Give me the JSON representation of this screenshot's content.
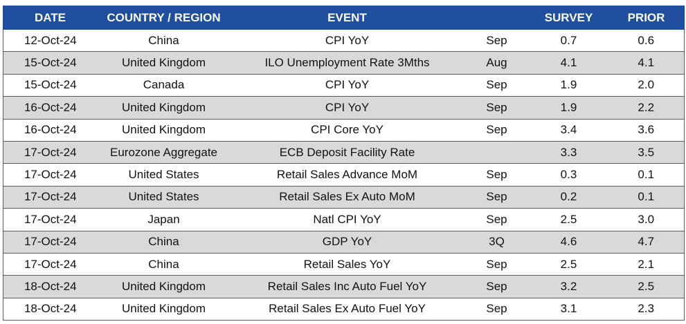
{
  "headers": {
    "date": "DATE",
    "country": "COUNTRY / REGION",
    "event": "EVENT",
    "period": "",
    "survey": "SURVEY",
    "prior": "PRIOR"
  },
  "rows": [
    {
      "date": "12-Oct-24",
      "country": "China",
      "event": "CPI YoY",
      "period": "Sep",
      "survey": "0.7",
      "prior": "0.6"
    },
    {
      "date": "15-Oct-24",
      "country": "United Kingdom",
      "event": "ILO Unemployment Rate 3Mths",
      "period": "Aug",
      "survey": "4.1",
      "prior": "4.1"
    },
    {
      "date": "15-Oct-24",
      "country": "Canada",
      "event": "CPI YoY",
      "period": "Sep",
      "survey": "1.9",
      "prior": "2.0"
    },
    {
      "date": "16-Oct-24",
      "country": "United Kingdom",
      "event": "CPI YoY",
      "period": "Sep",
      "survey": "1.9",
      "prior": "2.2"
    },
    {
      "date": "16-Oct-24",
      "country": "United Kingdom",
      "event": "CPI Core YoY",
      "period": "Sep",
      "survey": "3.4",
      "prior": "3.6"
    },
    {
      "date": "17-Oct-24",
      "country": "Eurozone Aggregate",
      "event": "ECB Deposit Facility Rate",
      "period": "",
      "survey": "3.3",
      "prior": "3.5"
    },
    {
      "date": "17-Oct-24",
      "country": "United States",
      "event": "Retail Sales Advance MoM",
      "period": "Sep",
      "survey": "0.3",
      "prior": "0.1"
    },
    {
      "date": "17-Oct-24",
      "country": "United States",
      "event": "Retail Sales Ex Auto MoM",
      "period": "Sep",
      "survey": "0.2",
      "prior": "0.1"
    },
    {
      "date": "17-Oct-24",
      "country": "Japan",
      "event": "Natl CPI YoY",
      "period": "Sep",
      "survey": "2.5",
      "prior": "3.0"
    },
    {
      "date": "17-Oct-24",
      "country": "China",
      "event": "GDP YoY",
      "period": "3Q",
      "survey": "4.6",
      "prior": "4.7"
    },
    {
      "date": "17-Oct-24",
      "country": "China",
      "event": "Retail Sales YoY",
      "period": "Sep",
      "survey": "2.5",
      "prior": "2.1"
    },
    {
      "date": "18-Oct-24",
      "country": "United Kingdom",
      "event": "Retail Sales Inc Auto Fuel YoY",
      "period": "Sep",
      "survey": "3.2",
      "prior": "2.5"
    },
    {
      "date": "18-Oct-24",
      "country": "United Kingdom",
      "event": "Retail Sales Ex Auto Fuel YoY",
      "period": "Sep",
      "survey": "3.1",
      "prior": "2.3"
    }
  ],
  "colors": {
    "header_bg": "#1f4e9e",
    "header_text": "#ffffff",
    "row_alt": "#d9d9d9",
    "row_base": "#ffffff"
  }
}
